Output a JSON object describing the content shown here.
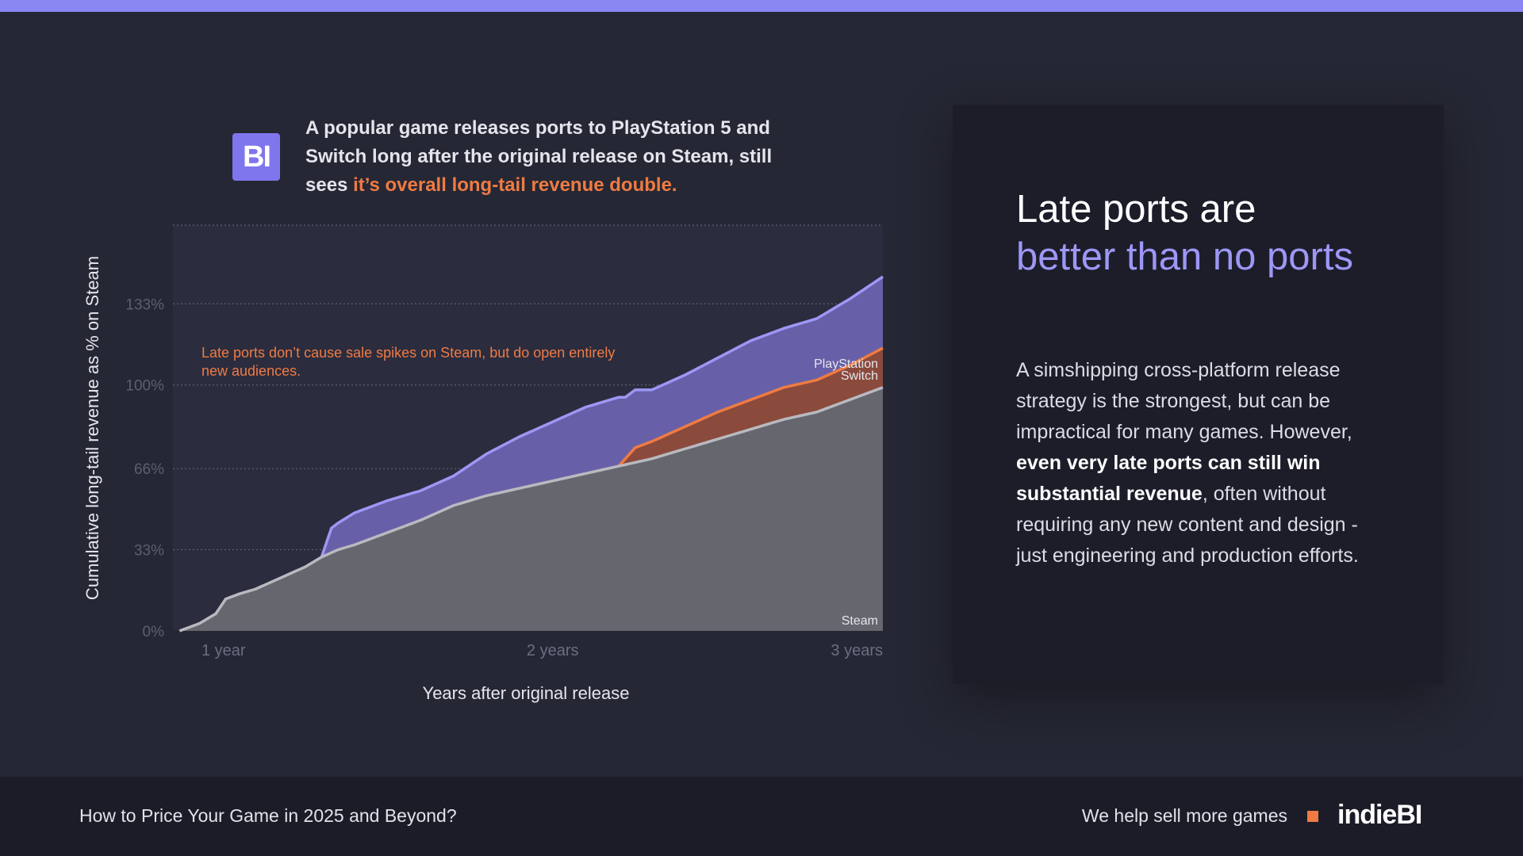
{
  "headline": {
    "text": "A popular game releases ports to PlayStation 5 and Switch long after the original release on Steam, still sees ",
    "highlight": "it’s overall long-tail revenue double."
  },
  "logo_badge": "BI",
  "side_panel": {
    "title": "Late ports are",
    "title_accent": "better than no ports",
    "body_1": "A simshipping cross-platform release strategy is the strongest, but can be impractical for many games. However, ",
    "body_bold": "even very late ports can still win substantial revenue",
    "body_2": ", often without requiring any new content and design - just engineering and production efforts."
  },
  "footer": {
    "title": "How to Price Your Game in 2025 and Beyond?",
    "tagline": "We help sell more games",
    "brand": "indieBI"
  },
  "colors": {
    "playstation": "#9d97f5",
    "switch": "#ef7b43",
    "steam": "#b9b9c0",
    "accent": "#9d97f5",
    "highlight": "#ef7b43"
  },
  "chart_data": {
    "type": "area",
    "title": "",
    "xlabel": "Years after original release",
    "ylabel": "Cumulative long-tail revenue as % on Steam",
    "annotation": "Late ports don’t cause sale spikes on Steam, but do open entirely new audiences.",
    "x_ticks": [
      {
        "value": 1,
        "label": "1 year"
      },
      {
        "value": 2,
        "label": "2 years"
      },
      {
        "value": 3,
        "label": "3 years"
      }
    ],
    "y_ticks": [
      {
        "value": 0,
        "label": "0%"
      },
      {
        "value": 33,
        "label": "33%"
      },
      {
        "value": 66,
        "label": "66%"
      },
      {
        "value": 100,
        "label": "100%"
      },
      {
        "value": 133,
        "label": "133%"
      }
    ],
    "xlim": [
      0.85,
      3.0
    ],
    "ylim": [
      0,
      165
    ],
    "stacked": true,
    "grid": true,
    "series": [
      {
        "name": "Steam",
        "x": [
          0.87,
          0.93,
          0.98,
          1.01,
          1.05,
          1.1,
          1.2,
          1.25,
          1.3,
          1.35,
          1.4,
          1.5,
          1.6,
          1.7,
          1.8,
          1.9,
          2.0,
          2.1,
          2.2,
          2.3,
          2.4,
          2.5,
          2.6,
          2.7,
          2.8,
          2.9,
          3.0
        ],
        "values": [
          0,
          3,
          7,
          13,
          15,
          17,
          23,
          26,
          30,
          33,
          35,
          40,
          45,
          51,
          55,
          58,
          61,
          64,
          67,
          70,
          74,
          78,
          82,
          86,
          89,
          94,
          99
        ]
      },
      {
        "name": "Switch",
        "x": [
          2.2,
          2.25,
          2.3,
          2.4,
          2.5,
          2.6,
          2.7,
          2.8,
          2.9,
          3.0
        ],
        "values": [
          0,
          6,
          7,
          9,
          11,
          12,
          13,
          13,
          14,
          16
        ]
      },
      {
        "name": "PlayStation",
        "x": [
          1.3,
          1.33,
          1.4,
          1.5,
          1.6,
          1.7,
          1.8,
          1.9,
          2.0,
          2.1,
          2.2,
          2.22,
          2.3,
          2.4,
          2.5,
          2.6,
          2.7,
          2.8,
          2.9,
          3.0
        ],
        "values": [
          0,
          10,
          13,
          13,
          12,
          12,
          17,
          21,
          24,
          27,
          28,
          25,
          21,
          21,
          22,
          24,
          24,
          25,
          27,
          29
        ]
      }
    ],
    "series_labels": [
      "PlayStation",
      "Switch",
      "Steam"
    ]
  }
}
